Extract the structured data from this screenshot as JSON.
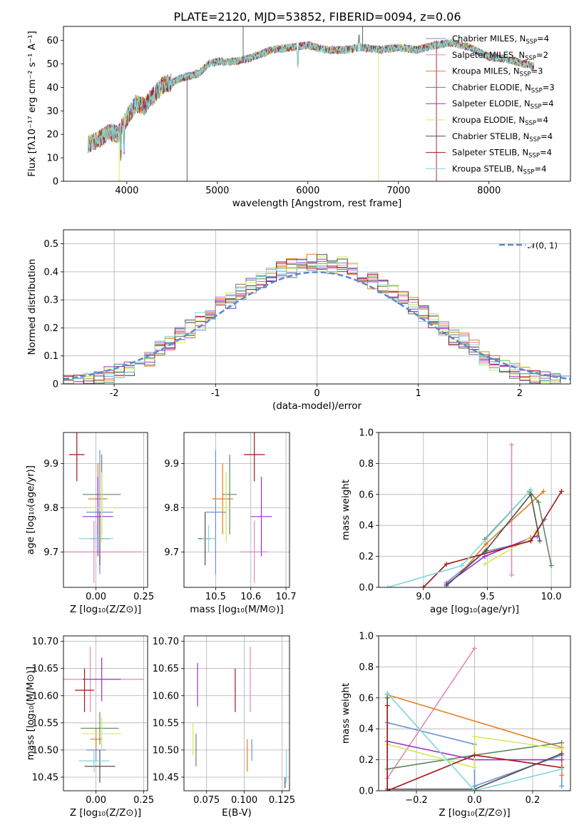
{
  "figure": {
    "title": "PLATE=2120, MJD=53852, FIBERID=0094, z=0.06"
  },
  "series_colors": [
    "#6a8fd8",
    "#e586b5",
    "#e67e22",
    "#5c8a5c",
    "#9b30c9",
    "#d4e85a",
    "#4f4f4f",
    "#a31515",
    "#7fd6d8"
  ],
  "chart_data": [
    {
      "id": "spectrum",
      "type": "line",
      "title": "PLATE=2120, MJD=53852, FIBERID=0094, z=0.06",
      "xlabel": "wavelength [Angstrom, rest frame]",
      "ylabel": "Flux [fλ10⁻¹⁷ erg cm⁻² s⁻¹ A⁻¹]",
      "xlim": [
        3300,
        8900
      ],
      "ylim": [
        0,
        66
      ],
      "xticks": [
        4000,
        5000,
        6000,
        7000,
        8000
      ],
      "yticks": [
        0,
        10,
        20,
        30,
        40,
        50,
        60
      ],
      "grid": false,
      "legend_placement": "right",
      "legend": [
        {
          "label": "Chabrier MILES, N",
          "sub": "SSP",
          "suffix": "=4"
        },
        {
          "label": "Salpeter MILES, N",
          "sub": "SSP",
          "suffix": "=2"
        },
        {
          "label": "Kroupa MILES, N",
          "sub": "SSP",
          "suffix": "=3"
        },
        {
          "label": "Chabrier ELODIE, N",
          "sub": "SSP",
          "suffix": "=3"
        },
        {
          "label": "Salpeter ELODIE, N",
          "sub": "SSP",
          "suffix": "=4"
        },
        {
          "label": "Kroupa ELODIE, N",
          "sub": "SSP",
          "suffix": "=4"
        },
        {
          "label": "Chabrier STELIB, N",
          "sub": "SSP",
          "suffix": "=4"
        },
        {
          "label": "Salpeter STELIB, N",
          "sub": "SSP",
          "suffix": "=4"
        },
        {
          "label": "Kroupa STELIB, N",
          "sub": "SSP",
          "suffix": "=4"
        }
      ],
      "continuum": {
        "x": [
          3570,
          3700,
          3800,
          3900,
          4000,
          4100,
          4200,
          4300,
          4400,
          4500,
          4600,
          4700,
          4800,
          4900,
          5000,
          5200,
          5400,
          5600,
          5800,
          6000,
          6200,
          6400,
          6600,
          6800,
          7000,
          7200,
          7400,
          7600,
          7800,
          8000,
          8200,
          8400,
          8500
        ],
        "y": [
          16,
          18,
          21,
          20,
          27,
          33,
          32,
          37,
          41,
          42,
          44,
          45,
          46,
          50,
          51,
          51,
          53,
          56,
          57,
          58,
          56,
          56,
          57,
          56,
          57,
          56,
          58,
          59,
          57,
          53,
          52,
          50,
          49
        ]
      }
    },
    {
      "id": "residuals",
      "type": "histogram",
      "xlabel": "(data-model)/error",
      "ylabel": "Normed distribution",
      "xlim": [
        -2.5,
        2.5
      ],
      "ylim": [
        0,
        0.55
      ],
      "xticks": [
        -2,
        -1,
        0,
        1,
        2
      ],
      "yticks": [
        0.0,
        0.1,
        0.2,
        0.3,
        0.4,
        0.5
      ],
      "grid": true,
      "legend_placement": "top-right",
      "reference_curve": {
        "label": "𝒩(0, 1)",
        "mean": 0,
        "sigma": 1,
        "color": "#5b8ad0"
      }
    },
    {
      "id": "z-vs-age",
      "type": "scatter",
      "xlabel": "Z [log₁₀(Z/Z⊙)]",
      "ylabel": "age  [log₁₀(age/yr)]",
      "xlim": [
        -0.17,
        0.27
      ],
      "ylim": [
        9.62,
        9.97
      ],
      "xticks": [
        -0.0,
        0.25
      ],
      "ytick_labels": [
        "9.7",
        "9.8",
        "9.9"
      ],
      "yticks": [
        9.7,
        9.8,
        9.9
      ],
      "xtick_labels": [
        "0.00",
        "0.25"
      ],
      "grid": true,
      "points": [
        {
          "x": 0.02,
          "y": 9.79,
          "xerr": 0.07,
          "yerr": 0.14
        },
        {
          "x": -0.01,
          "y": 9.7,
          "xerr": 0.25,
          "yerr": 0.07
        },
        {
          "x": 0.01,
          "y": 9.82,
          "xerr": 0.05,
          "yerr": 0.08
        },
        {
          "x": 0.03,
          "y": 9.83,
          "xerr": 0.1,
          "yerr": 0.09
        },
        {
          "x": 0.01,
          "y": 9.78,
          "xerr": 0.08,
          "yerr": 0.09
        },
        {
          "x": 0.03,
          "y": 9.8,
          "xerr": 0.07,
          "yerr": 0.08
        },
        {
          "x": 0.02,
          "y": 9.73,
          "xerr": 0.05,
          "yerr": 0.06
        },
        {
          "x": -0.1,
          "y": 9.92,
          "xerr": 0.04,
          "yerr": 0.06
        },
        {
          "x": 0.0,
          "y": 9.73,
          "xerr": 0.09,
          "yerr": 0.03
        }
      ]
    },
    {
      "id": "mass-vs-age",
      "type": "scatter",
      "xlabel": "mass [log₁₀(M/M⊙)]",
      "ylabel": "",
      "xlim": [
        10.41,
        10.71
      ],
      "ylim": [
        9.62,
        9.97
      ],
      "xticks": [
        10.5,
        10.6,
        10.7
      ],
      "xtick_labels": [
        "10.5",
        "10.6",
        "10.7"
      ],
      "yticks": [
        9.7,
        9.8,
        9.9
      ],
      "ytick_labels": [
        "9.7",
        "9.8",
        "9.9"
      ],
      "grid": true,
      "points": [
        {
          "x": 10.5,
          "y": 9.79,
          "xerr": 0.03,
          "yerr": 0.14
        },
        {
          "x": 10.61,
          "y": 9.7,
          "xerr": 0.04,
          "yerr": 0.07
        },
        {
          "x": 10.52,
          "y": 9.82,
          "xerr": 0.03,
          "yerr": 0.08
        },
        {
          "x": 10.54,
          "y": 9.83,
          "xerr": 0.02,
          "yerr": 0.09
        },
        {
          "x": 10.63,
          "y": 9.78,
          "xerr": 0.03,
          "yerr": 0.09
        },
        {
          "x": 10.53,
          "y": 9.8,
          "xerr": 0.02,
          "yerr": 0.08
        },
        {
          "x": 10.47,
          "y": 9.73,
          "xerr": 0.02,
          "yerr": 0.06
        },
        {
          "x": 10.61,
          "y": 9.92,
          "xerr": 0.03,
          "yerr": 0.06
        },
        {
          "x": 10.48,
          "y": 9.73,
          "xerr": 0.02,
          "yerr": 0.03
        }
      ]
    },
    {
      "id": "age-vs-weight",
      "type": "line",
      "xlabel": "age  [log₁₀(age/yr)]",
      "ylabel": "mass weight",
      "xlim": [
        8.65,
        10.15
      ],
      "ylim": [
        0,
        1
      ],
      "xticks": [
        9.0,
        9.5,
        10.0
      ],
      "xtick_labels": [
        "9.0",
        "9.5",
        "10.0"
      ],
      "yticks": [
        0,
        0.2,
        0.4,
        0.6,
        0.8,
        1.0
      ],
      "ytick_labels": [
        "0.0",
        "0.2",
        "0.4",
        "0.6",
        "0.8",
        "1.0"
      ],
      "grid": true,
      "series": [
        {
          "x": [
            9.18,
            9.48,
            9.84,
            9.95
          ],
          "y": [
            0.03,
            0.23,
            0.3,
            0.44
          ]
        },
        {
          "x": [
            9.69,
            9.69
          ],
          "y": [
            0.08,
            0.92
          ]
        },
        {
          "x": [
            9.3,
            9.49,
            9.94
          ],
          "y": [
            0.1,
            0.28,
            0.62
          ]
        },
        {
          "x": [
            9.48,
            9.83,
            9.9,
            10.0
          ],
          "y": [
            0.31,
            0.62,
            0.55,
            0.14
          ]
        },
        {
          "x": [
            9.18,
            9.48,
            9.84,
            9.89
          ],
          "y": [
            0.02,
            0.2,
            0.32,
            0.33
          ]
        },
        {
          "x": [
            9.48,
            9.9,
            9.88
          ],
          "y": [
            0.15,
            0.35,
            0.36
          ]
        },
        {
          "x": [
            9.18,
            9.49,
            9.84,
            9.91
          ],
          "y": [
            0.01,
            0.24,
            0.6,
            0.3
          ]
        },
        {
          "x": [
            9.0,
            9.18,
            9.84,
            10.08
          ],
          "y": [
            0.0,
            0.15,
            0.3,
            0.62
          ]
        },
        {
          "x": [
            8.72,
            9.3,
            9.84
          ],
          "y": [
            0.0,
            0.14,
            0.63
          ]
        }
      ]
    },
    {
      "id": "z-vs-mass",
      "type": "scatter",
      "xlabel": "Z [log₁₀(Z/Z⊙)]",
      "ylabel": "mass [log₁₀(M/M⊙)]",
      "xlim": [
        -0.17,
        0.27
      ],
      "ylim": [
        10.425,
        10.71
      ],
      "xticks": [
        0.0,
        0.25
      ],
      "xtick_labels": [
        "0.00",
        "0.25"
      ],
      "yticks": [
        10.45,
        10.5,
        10.55,
        10.6,
        10.65,
        10.7
      ],
      "ytick_labels": [
        "10.45",
        "10.50",
        "10.55",
        "10.60",
        "10.65",
        "10.70"
      ],
      "grid": true,
      "points": [
        {
          "x": 0.0,
          "y": 10.5,
          "xerr": 0.05,
          "yerr": 0.02
        },
        {
          "x": -0.03,
          "y": 10.63,
          "xerr": 0.28,
          "yerr": 0.06
        },
        {
          "x": 0.0,
          "y": 10.52,
          "xerr": 0.03,
          "yerr": 0.02
        },
        {
          "x": 0.02,
          "y": 10.54,
          "xerr": 0.1,
          "yerr": 0.03
        },
        {
          "x": 0.03,
          "y": 10.63,
          "xerr": 0.1,
          "yerr": 0.04
        },
        {
          "x": 0.03,
          "y": 10.53,
          "xerr": 0.1,
          "yerr": 0.03
        },
        {
          "x": 0.02,
          "y": 10.47,
          "xerr": 0.08,
          "yerr": 0.03
        },
        {
          "x": -0.06,
          "y": 10.61,
          "xerr": 0.05,
          "yerr": 0.04
        },
        {
          "x": -0.01,
          "y": 10.48,
          "xerr": 0.08,
          "yerr": 0.02
        }
      ]
    },
    {
      "id": "ebv-vs-mass",
      "type": "scatter",
      "xlabel": "E(B-V)",
      "ylabel": "",
      "xlim": [
        0.06,
        0.13
      ],
      "ylim": [
        10.425,
        10.71
      ],
      "xticks": [
        0.075,
        0.1,
        0.125
      ],
      "xtick_labels": [
        "0.075",
        "0.100",
        "0.125"
      ],
      "yticks": [
        10.45,
        10.5,
        10.55,
        10.6,
        10.65,
        10.7
      ],
      "ytick_labels": [
        "10.45",
        "10.50",
        "10.55",
        "10.60",
        "10.65",
        "10.70"
      ],
      "grid": true,
      "points": [
        {
          "x": 0.105,
          "y": 10.5,
          "xerr": 0,
          "yerr": 0.02
        },
        {
          "x": 0.104,
          "y": 10.63,
          "xerr": 0,
          "yerr": 0.06
        },
        {
          "x": 0.102,
          "y": 10.49,
          "xerr": 0,
          "yerr": 0.03
        },
        {
          "x": 0.068,
          "y": 10.5,
          "xerr": 0,
          "yerr": 0.03
        },
        {
          "x": 0.069,
          "y": 10.62,
          "xerr": 0,
          "yerr": 0.04
        },
        {
          "x": 0.066,
          "y": 10.52,
          "xerr": 0,
          "yerr": 0.03
        },
        {
          "x": 0.127,
          "y": 10.44,
          "xerr": 0,
          "yerr": 0.01
        },
        {
          "x": 0.094,
          "y": 10.61,
          "xerr": 0,
          "yerr": 0.04
        },
        {
          "x": 0.128,
          "y": 10.47,
          "xerr": 0,
          "yerr": 0.03
        }
      ]
    },
    {
      "id": "z-vs-weight",
      "type": "line",
      "xlabel": "Z [log₁₀(Z/Z⊙)]",
      "ylabel": "mass weight",
      "xlim": [
        -0.33,
        0.33
      ],
      "ylim": [
        0,
        1
      ],
      "xticks": [
        -0.2,
        0.0,
        0.2
      ],
      "xtick_labels": [
        "−0.2",
        "0.0",
        "0.2"
      ],
      "yticks": [
        0,
        0.2,
        0.4,
        0.6,
        0.8,
        1.0
      ],
      "ytick_labels": [
        "0.0",
        "0.2",
        "0.4",
        "0.6",
        "0.8",
        "1.0"
      ],
      "grid": true,
      "series": [
        {
          "x": [
            -0.3,
            0.0,
            0.0,
            0.3,
            0.3
          ],
          "y": [
            0.44,
            0.3,
            0.03,
            0.23,
            0.03
          ]
        },
        {
          "x": [
            -0.3,
            0.0
          ],
          "y": [
            0.08,
            0.92
          ]
        },
        {
          "x": [
            -0.3,
            0.3,
            0.3
          ],
          "y": [
            0.62,
            0.28,
            0.1
          ]
        },
        {
          "x": [
            -0.3,
            0.0,
            0.3
          ],
          "y": [
            0.14,
            0.23,
            0.31
          ]
        },
        {
          "x": [
            -0.3,
            0.0,
            0.3
          ],
          "y": [
            0.32,
            0.2,
            0.2
          ]
        },
        {
          "x": [
            -0.3,
            0.0,
            0.0,
            0.3
          ],
          "y": [
            0.3,
            0.15,
            0.35,
            0.27
          ]
        },
        {
          "x": [
            -0.3,
            -0.3,
            0.0,
            0.3
          ],
          "y": [
            0.6,
            0.01,
            0.01,
            0.24
          ]
        },
        {
          "x": [
            -0.3,
            -0.3,
            0.0,
            0.3
          ],
          "y": [
            0.55,
            0.0,
            0.23,
            0.15
          ]
        },
        {
          "x": [
            -0.3,
            0.0,
            0.3
          ],
          "y": [
            0.63,
            0.0,
            0.14
          ]
        }
      ]
    }
  ]
}
